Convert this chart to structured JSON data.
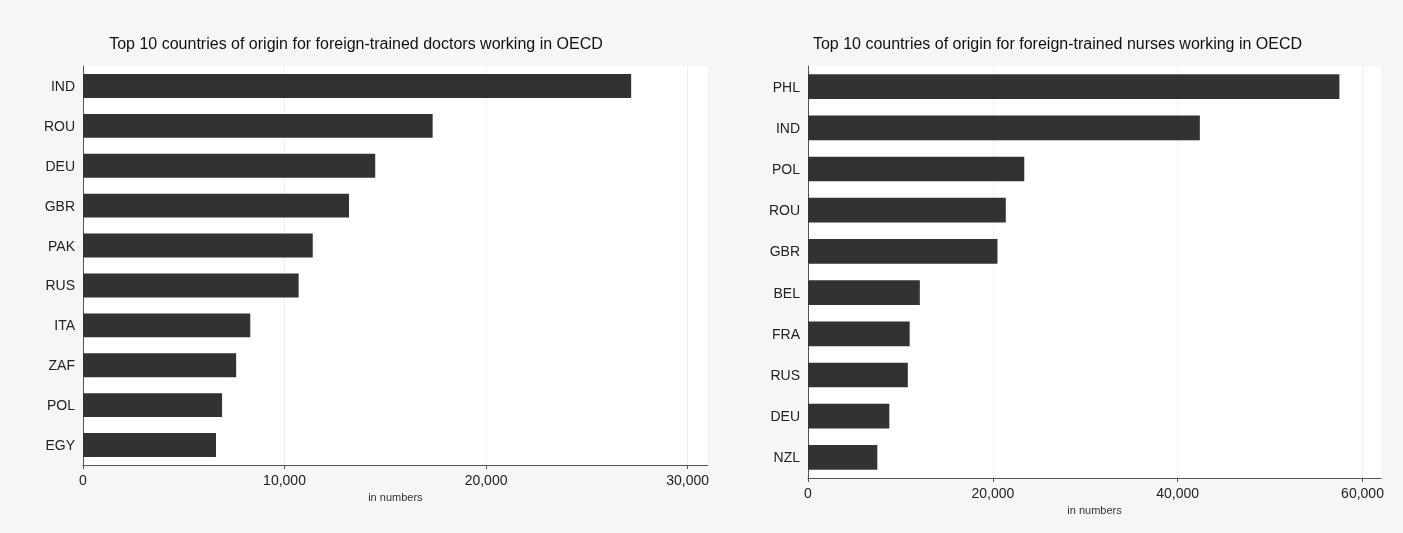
{
  "chart_data": [
    {
      "type": "bar",
      "orientation": "horizontal",
      "title": "Top 10 countries of origin for foreign-trained doctors working in OECD",
      "xlabel": "in numbers",
      "categories": [
        "IND",
        "ROU",
        "DEU",
        "GBR",
        "PAK",
        "RUS",
        "ITA",
        "ZAF",
        "POL",
        "EGY"
      ],
      "values": [
        27200,
        17350,
        14500,
        13200,
        11400,
        10700,
        8300,
        7600,
        6900,
        6600
      ],
      "color": "#333132",
      "xlim": [
        0,
        31000
      ],
      "xticks": [
        0,
        {
          "value": 10000,
          "label": "10,000"
        },
        {
          "value": 20000,
          "label": "20,000"
        },
        {
          "value": 30000,
          "label": "30,000"
        }
      ],
      "grid": "x"
    },
    {
      "type": "bar",
      "orientation": "horizontal",
      "title": "Top 10 countries of origin for foreign-trained nurses working in OECD",
      "xlabel": "in numbers",
      "categories": [
        "PHL",
        "IND",
        "POL",
        "ROU",
        "GBR",
        "BEL",
        "FRA",
        "RUS",
        "DEU",
        "NZL"
      ],
      "values": [
        57500,
        42400,
        23400,
        21400,
        20500,
        12100,
        11000,
        10800,
        8800,
        7500
      ],
      "color": "#333132",
      "xlim": [
        0,
        62000
      ],
      "xticks": [
        0,
        {
          "value": 20000,
          "label": "20,000"
        },
        {
          "value": 40000,
          "label": "40,000"
        },
        {
          "value": 60000,
          "label": "60,000"
        }
      ],
      "grid": "x"
    }
  ]
}
